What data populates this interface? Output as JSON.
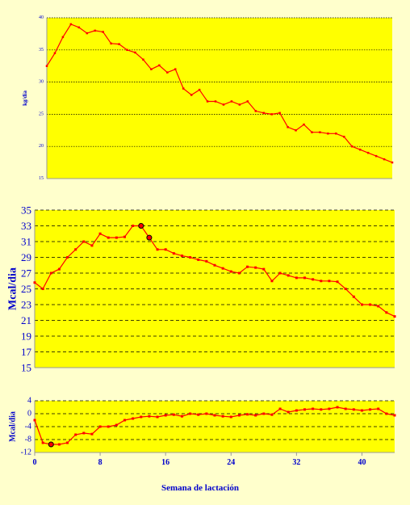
{
  "colors": {
    "page_bg": "#ffffcc",
    "panel_bg": "#ffffcc",
    "plot_bg": "#ffff00",
    "series": "#ff0000",
    "text": "#0000cc",
    "grid": "#000000",
    "highlight_marker": "#000000"
  },
  "chart_data": [
    {
      "type": "line",
      "title": "",
      "xlabel": "",
      "ylabel": "kg/dia",
      "ylim": [
        15,
        40
      ],
      "yticks": [
        "15",
        "20",
        "25",
        "30",
        "35",
        "40"
      ],
      "grid": true,
      "x": [
        0,
        1,
        2,
        3,
        4,
        5,
        6,
        7,
        8,
        9,
        10,
        11,
        12,
        13,
        14,
        15,
        16,
        17,
        18,
        19,
        20,
        21,
        22,
        23,
        24,
        25,
        26,
        27,
        28,
        29,
        30,
        31,
        32,
        33,
        34,
        35,
        36,
        37,
        38,
        39,
        40,
        41,
        42,
        43
      ],
      "series": [
        {
          "values": [
            32.5,
            34.5,
            37.0,
            39.0,
            38.5,
            37.6,
            38.0,
            37.8,
            36.0,
            35.9,
            35.0,
            34.6,
            33.5,
            32.0,
            32.6,
            31.5,
            32.0,
            29.0,
            28.0,
            28.8,
            27.0,
            27.0,
            26.5,
            27.0,
            26.5,
            27.0,
            25.5,
            25.2,
            25.0,
            25.2,
            23.0,
            22.5,
            23.4,
            22.2,
            22.2,
            22.0,
            22.0,
            21.5,
            20.0,
            19.5,
            19.0,
            18.5,
            18.0,
            17.5
          ]
        }
      ]
    },
    {
      "type": "line",
      "title": "",
      "xlabel": "",
      "ylabel": "Mcal/dia",
      "ylim": [
        15,
        35
      ],
      "yticks": [
        "15",
        "17",
        "19",
        "21",
        "23",
        "25",
        "27",
        "29",
        "31",
        "33",
        "35"
      ],
      "grid": true,
      "x": [
        0,
        1,
        2,
        3,
        4,
        5,
        6,
        7,
        8,
        9,
        10,
        11,
        12,
        13,
        14,
        15,
        16,
        17,
        18,
        19,
        20,
        21,
        22,
        23,
        24,
        25,
        26,
        27,
        28,
        29,
        30,
        31,
        32,
        33,
        34,
        35,
        36,
        37,
        38,
        39,
        40,
        41,
        42,
        43,
        44
      ],
      "highlighted_points": [
        13,
        14
      ],
      "series": [
        {
          "values": [
            25.8,
            25.0,
            27.0,
            27.5,
            29.0,
            30.0,
            31.0,
            30.5,
            32.0,
            31.5,
            31.5,
            31.6,
            33.0,
            33.0,
            31.5,
            30.0,
            30.0,
            29.5,
            29.2,
            29.0,
            28.7,
            28.5,
            28.0,
            27.6,
            27.2,
            27.0,
            27.8,
            27.7,
            27.5,
            26.0,
            27.0,
            26.7,
            26.4,
            26.4,
            26.2,
            26.0,
            26.0,
            25.9,
            25.0,
            24.0,
            23.0,
            23.0,
            22.8,
            22.0,
            21.5
          ]
        }
      ]
    },
    {
      "type": "line",
      "title": "",
      "xlabel": "Semana de lactación",
      "ylabel": "Mcal/dia",
      "xlim": [
        0,
        44
      ],
      "ylim": [
        -12,
        4
      ],
      "yticks": [
        "-12",
        "-8",
        "-4",
        "0",
        "4"
      ],
      "xticks": [
        "0",
        "8",
        "16",
        "24",
        "32",
        "40"
      ],
      "grid": true,
      "x": [
        0,
        1,
        2,
        3,
        4,
        5,
        6,
        7,
        8,
        9,
        10,
        11,
        12,
        13,
        14,
        15,
        16,
        17,
        18,
        19,
        20,
        21,
        22,
        23,
        24,
        25,
        26,
        27,
        28,
        29,
        30,
        31,
        32,
        33,
        34,
        35,
        36,
        37,
        38,
        39,
        40,
        41,
        42,
        43,
        44
      ],
      "highlighted_points": [
        2
      ],
      "series": [
        {
          "values": [
            -2.0,
            -9.0,
            -9.5,
            -9.5,
            -9.0,
            -6.5,
            -6.0,
            -6.3,
            -4.0,
            -4.0,
            -3.5,
            -2.0,
            -1.5,
            -1.0,
            -0.8,
            -1.0,
            -0.5,
            -0.3,
            -0.8,
            0.0,
            -0.3,
            0.0,
            -0.5,
            -0.8,
            -1.0,
            -0.5,
            -0.2,
            -0.5,
            0.0,
            -0.3,
            1.5,
            0.5,
            1.0,
            1.3,
            1.5,
            1.3,
            1.5,
            2.0,
            1.5,
            1.3,
            1.0,
            1.3,
            1.5,
            0.0,
            -0.5
          ]
        }
      ]
    }
  ]
}
